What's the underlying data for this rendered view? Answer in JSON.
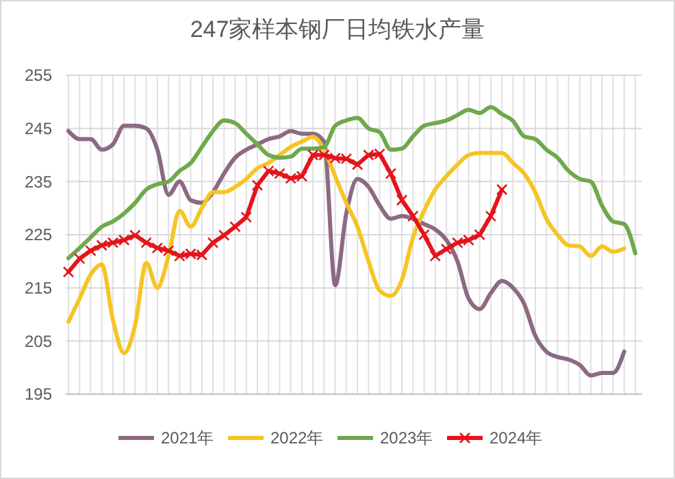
{
  "chart_data": {
    "type": "line",
    "title": "247家样本钢厂日均铁水产量",
    "categories": [
      null,
      null,
      null,
      null,
      null,
      null,
      null,
      null,
      null,
      null,
      null,
      null,
      null,
      null,
      null,
      null,
      null,
      null,
      null,
      null,
      null,
      null,
      null,
      null,
      null,
      null,
      null,
      null,
      null,
      null,
      null,
      null,
      null,
      null,
      null,
      null,
      null,
      null,
      null,
      null,
      null,
      null,
      null,
      null,
      null,
      null,
      null,
      null,
      null,
      null,
      null,
      null
    ],
    "ylim": [
      195,
      255
    ],
    "yticks": [
      195,
      205,
      215,
      225,
      235,
      245,
      255
    ],
    "grid": true,
    "legend": "bottom",
    "line_style": "solid",
    "series": [
      {
        "name": "2021年",
        "color": "#8b6a82",
        "marker": "none",
        "values": [
          244.5,
          243,
          243,
          241,
          242,
          245.5,
          245.5,
          245,
          241,
          232.5,
          235,
          231.5,
          231,
          233,
          236.5,
          239.5,
          241,
          242,
          243,
          243.5,
          244.5,
          244,
          244,
          242.5,
          215.5,
          229,
          235.5,
          234,
          230.5,
          228,
          228.5,
          228,
          227,
          226,
          224,
          220,
          213,
          211,
          214,
          216.3,
          215,
          212,
          206,
          203,
          202,
          201.5,
          200.5,
          198.5,
          199,
          199,
          203,
          null
        ]
      },
      {
        "name": "2022年",
        "color": "#f5c525",
        "marker": "none",
        "values": [
          208.6,
          213,
          217.5,
          219.4,
          209,
          202.7,
          208,
          219.7,
          215,
          221,
          229.5,
          226.5,
          230,
          233,
          233,
          234,
          235.5,
          237.5,
          238.5,
          240,
          241.5,
          242.5,
          243.4,
          241,
          236,
          231,
          226.5,
          220,
          214.5,
          213.5,
          216.5,
          224.5,
          229.5,
          233.5,
          236,
          238.2,
          240,
          240.4,
          240.4,
          240.4,
          238.5,
          236.5,
          233,
          228,
          225,
          223,
          222.8,
          221,
          222.8,
          221.8,
          222.4,
          null
        ]
      },
      {
        "name": "2023年",
        "color": "#70a84c",
        "marker": "none",
        "values": [
          220.6,
          222.5,
          224.5,
          226.5,
          227.5,
          229,
          231,
          233.5,
          234.5,
          235,
          237,
          238.5,
          241.5,
          244.5,
          246.5,
          246,
          244,
          242,
          240,
          239.5,
          239.7,
          241.2,
          241.2,
          241.5,
          245.5,
          246.5,
          247,
          245,
          244.3,
          241,
          241.2,
          243.5,
          245.5,
          246,
          246.5,
          247.5,
          248.5,
          247.9,
          249,
          247.7,
          246.4,
          243.5,
          243,
          241,
          239.5,
          237,
          235.5,
          235,
          230.5,
          227.5,
          227,
          221.5
        ]
      },
      {
        "name": "2024年",
        "color": "#e5141b",
        "marker": "cross",
        "values": [
          218,
          220.5,
          222,
          223,
          223.5,
          224,
          224.9,
          223.5,
          222.5,
          222,
          221,
          221.4,
          221.2,
          223.5,
          224.9,
          226.5,
          228.3,
          234.3,
          237,
          236.5,
          235.6,
          236,
          240,
          240,
          239.4,
          239.3,
          238.2,
          240,
          240.2,
          236.5,
          231.5,
          228.5,
          225,
          221,
          222.3,
          223.5,
          224,
          225,
          228.5,
          233.5,
          null,
          null,
          null,
          null,
          null,
          null,
          null,
          null,
          null,
          null,
          null,
          null
        ]
      }
    ]
  }
}
